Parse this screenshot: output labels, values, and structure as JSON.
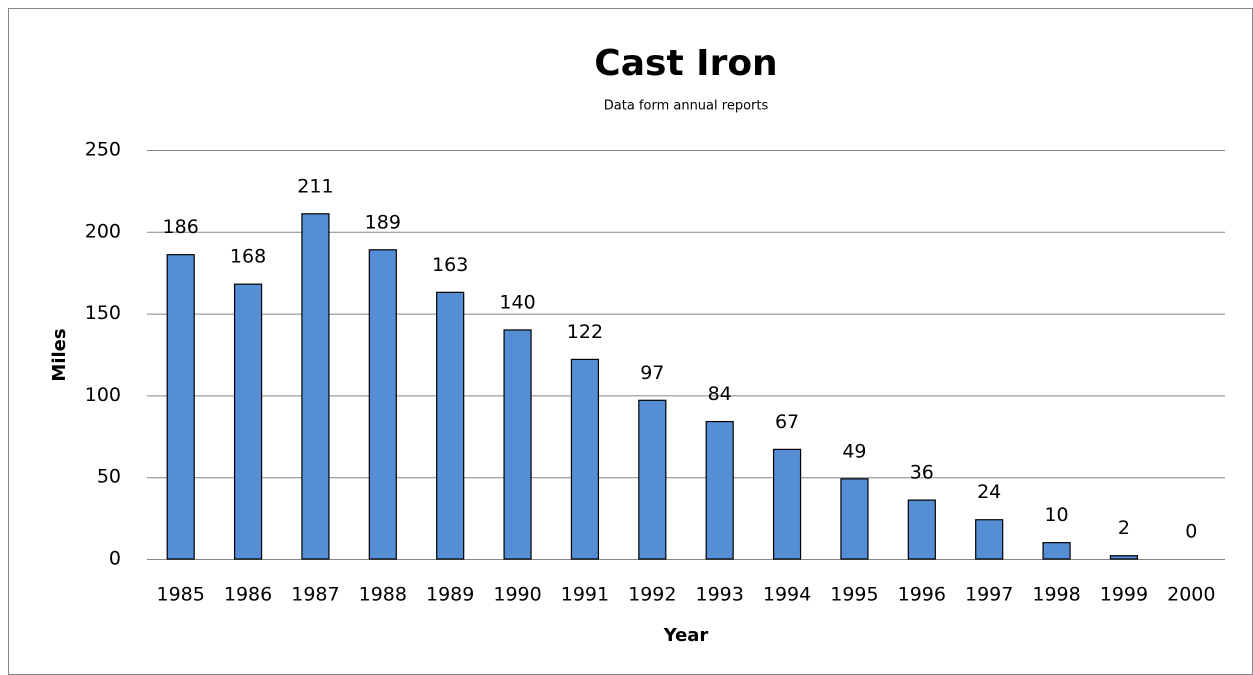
{
  "chart_data": {
    "type": "bar",
    "title": "Cast Iron",
    "subtitle": "Data form annual reports",
    "x_label": "Year",
    "y_label": "Miles",
    "categories": [
      "1985",
      "1986",
      "1987",
      "1988",
      "1989",
      "1990",
      "1991",
      "1992",
      "1993",
      "1994",
      "1995",
      "1996",
      "1997",
      "1998",
      "1999",
      "2000"
    ],
    "values": [
      186,
      168,
      211,
      189,
      163,
      140,
      122,
      97,
      84,
      67,
      49,
      36,
      24,
      10,
      2,
      0
    ],
    "color": "#558ed5",
    "ylim": [
      0,
      250
    ],
    "yticks": [
      0,
      50,
      100,
      150,
      200,
      250
    ],
    "grid": true
  }
}
